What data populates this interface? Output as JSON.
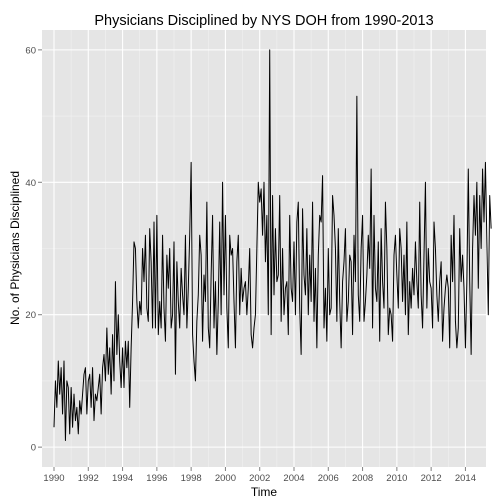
{
  "chart_data": {
    "type": "line",
    "title": "Physicians Disciplined by NYS DOH from 1990-2013",
    "xlabel": "Time",
    "ylabel": "No. of Physicians Disciplined",
    "xlim": [
      1989.3,
      2015.2
    ],
    "ylim": [
      -3,
      63
    ],
    "x_ticks": [
      1990,
      1992,
      1994,
      1996,
      1998,
      2000,
      2002,
      2004,
      2006,
      2008,
      2010,
      2012,
      2014
    ],
    "y_ticks": [
      0,
      20,
      40,
      60
    ],
    "grid": true,
    "legend": "none",
    "colors": {
      "panel": "#e5e5e5",
      "grid_major": "#ffffff",
      "grid_minor": "#f2f2f2",
      "line": "#000000",
      "tick_text": "#4d4d4d"
    },
    "series": [
      {
        "start_year": 1990,
        "frequency": 12,
        "values": [
          3,
          10,
          6,
          13,
          8,
          12,
          5,
          13,
          1,
          10,
          9,
          2,
          9,
          3,
          8,
          4,
          6,
          2,
          7,
          5,
          8,
          11,
          12,
          5,
          10,
          11,
          6,
          12,
          4,
          8,
          7,
          9,
          11,
          5,
          12,
          14,
          10,
          18,
          11,
          15,
          8,
          17,
          10,
          25,
          14,
          20,
          13,
          9,
          15,
          9,
          16,
          12,
          16,
          6,
          15,
          22,
          31,
          30,
          22,
          18,
          22,
          20,
          30,
          25,
          32,
          21,
          19,
          33,
          28,
          18,
          34,
          18,
          35,
          17,
          22,
          18,
          32,
          21,
          16,
          29,
          24,
          30,
          18,
          20,
          31,
          11,
          28,
          22,
          18,
          27,
          23,
          20,
          32,
          18,
          24,
          32,
          43,
          17,
          13,
          10,
          19,
          23,
          32,
          29,
          16,
          26,
          22,
          37,
          18,
          15,
          26,
          35,
          18,
          25,
          14,
          22,
          34,
          20,
          40,
          23,
          35,
          21,
          15,
          32,
          29,
          30,
          22,
          15,
          28,
          32,
          20,
          27,
          22,
          24,
          25,
          20,
          24,
          30,
          17,
          15,
          18,
          20,
          30,
          40,
          37,
          39,
          32,
          40,
          28,
          35,
          20,
          60,
          17,
          38,
          23,
          33,
          25,
          26,
          38,
          19,
          30,
          20,
          24,
          25,
          17,
          35,
          24,
          22,
          31,
          20,
          34,
          37,
          21,
          14,
          36,
          26,
          23,
          33,
          20,
          29,
          22,
          37,
          19,
          27,
          15,
          29,
          35,
          34,
          41,
          18,
          24,
          16,
          30,
          20,
          21,
          38,
          35,
          30,
          19,
          33,
          22,
          15,
          25,
          28,
          33,
          19,
          22,
          29,
          28,
          17,
          32,
          25,
          53,
          23,
          19,
          30,
          35,
          19,
          22,
          26,
          32,
          27,
          42,
          18,
          35,
          24,
          22,
          31,
          16,
          33,
          25,
          21,
          37,
          30,
          17,
          21,
          20,
          16,
          29,
          32,
          26,
          21,
          33,
          30,
          22,
          29,
          20,
          34,
          17,
          25,
          21,
          27,
          23,
          31,
          25,
          21,
          37,
          23,
          18,
          29,
          40,
          21,
          30,
          25,
          24,
          18,
          34,
          30,
          23,
          19,
          25,
          28,
          16,
          21,
          24,
          26,
          24,
          15,
          32,
          25,
          35,
          19,
          15,
          18,
          33,
          25,
          29,
          24,
          15,
          25,
          42,
          25,
          14,
          30,
          38,
          32,
          40,
          24,
          38,
          30,
          42,
          34,
          43,
          31,
          20,
          38,
          33
        ]
      }
    ]
  }
}
